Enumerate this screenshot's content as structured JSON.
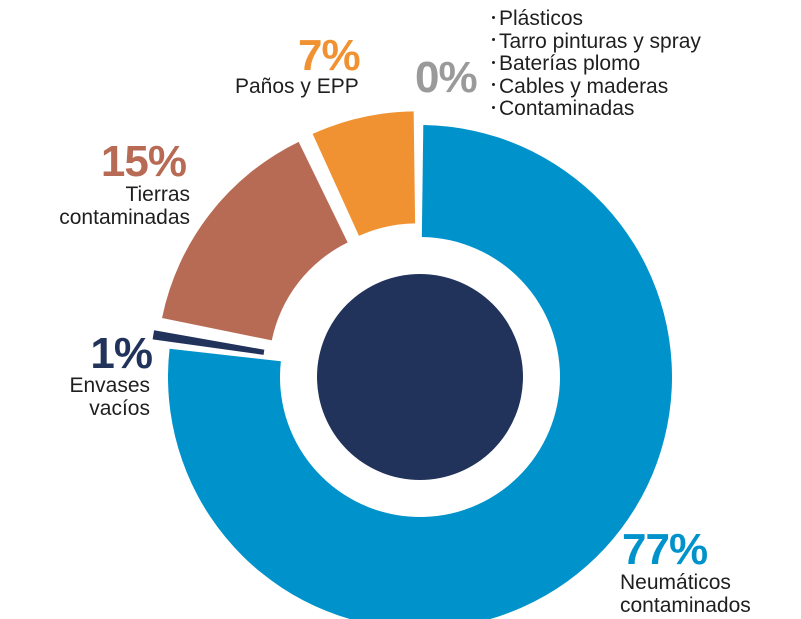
{
  "chart_data": {
    "type": "pie",
    "variant": "donut",
    "categories": [
      "Neumáticos contaminados",
      "Envases vacíos",
      "Tierras contaminadas",
      "Paños y EPP"
    ],
    "values": [
      77,
      1,
      15,
      7
    ],
    "colors": [
      "#0093cb",
      "#22335b",
      "#b76b55",
      "#f19232"
    ],
    "center_color": "#22335b",
    "labels": [
      {
        "percent": "77%",
        "text": [
          "Neumáticos",
          "contaminados"
        ],
        "color": "#0093cb"
      },
      {
        "percent": "1%",
        "text": [
          "Envases",
          "vacíos"
        ],
        "color": "#22335b"
      },
      {
        "percent": "15%",
        "text": [
          "Tierras",
          "contaminadas"
        ],
        "color": "#b76b55"
      },
      {
        "percent": "7%",
        "text": [
          "Paños y EPP"
        ],
        "color": "#f19232"
      },
      {
        "percent": "0%",
        "text": [],
        "color": "#9a9a9a"
      }
    ],
    "zero_group_items": [
      "Plásticos",
      "Tarro pinturas y spray",
      "Baterías plomo",
      "Cables y maderas",
      "Contaminadas"
    ]
  }
}
